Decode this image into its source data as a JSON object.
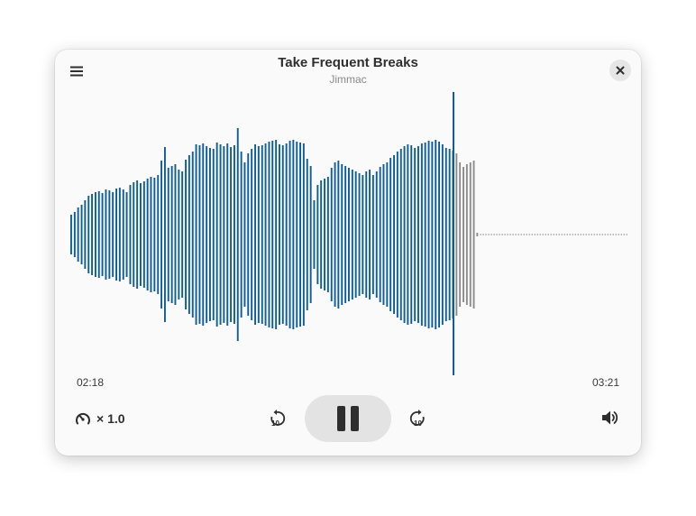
{
  "header": {
    "title": "Take Frequent Breaks",
    "artist": "Jimmac"
  },
  "playback": {
    "elapsed": "02:18",
    "remaining": "03:21",
    "speed_label": "× 1.0",
    "state": "playing"
  },
  "icons": {
    "menu": "menu-icon",
    "close": "close-icon",
    "speed": "gauge-icon",
    "skip_back": "skip-back-10-icon",
    "skip_forward": "skip-forward-10-icon",
    "pause": "pause-icon",
    "volume": "volume-icon"
  },
  "colors": {
    "played": "#0e5d99",
    "unplayed": "#8b8b8b",
    "playhead": "#0e5d99"
  }
}
